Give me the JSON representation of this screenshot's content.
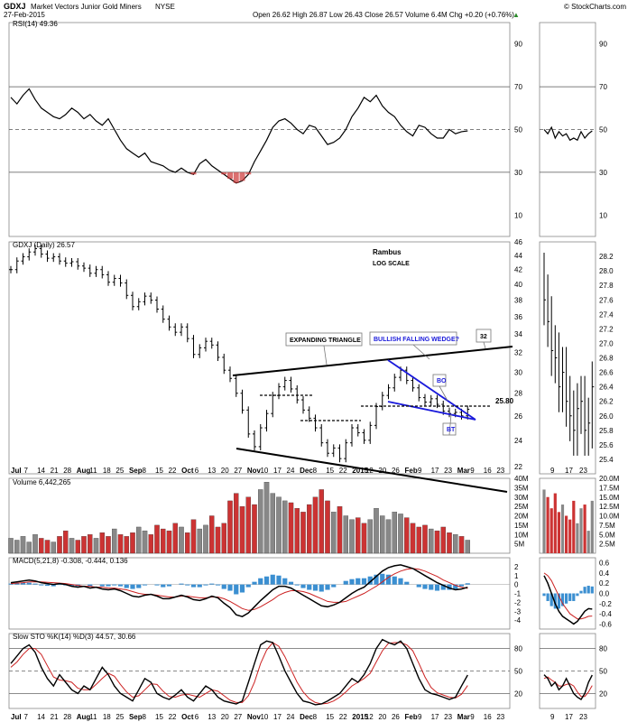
{
  "header": {
    "symbol": "GDXJ",
    "name": "Market Vectors Junior Gold Miners",
    "exchange": "NYSE",
    "date": "27-Feb-2015",
    "quote": "Open 26.62  High 26.87  Low 26.43  Close 26.57  Volume 6.4M  Chg +0.20 (+0.76%)",
    "quote_arrow": "▲",
    "credit": "© StockCharts.com"
  },
  "colors": {
    "up": "#000000",
    "down": "#cc3333",
    "volume_up": "#888888",
    "volume_down": "#cc3333",
    "macd_hist": "#3b8fd1",
    "signal": "#cc2222",
    "annotation_blue": "#1a1adb",
    "rsi_low_fill": "#cc3333"
  },
  "x_axis": {
    "main_labels": [
      "Jul",
      "7",
      "14",
      "21",
      "28",
      "Aug",
      "11",
      "18",
      "25",
      "Sep",
      "8",
      "15",
      "22",
      "Oct",
      "6",
      "13",
      "20",
      "27",
      "Nov",
      "10",
      "17",
      "24",
      "Dec",
      "8",
      "15",
      "22",
      "2015",
      "12",
      "20",
      "26",
      "Feb",
      "9",
      "17",
      "23",
      "Mar",
      "9",
      "16",
      "23"
    ],
    "side_labels": [
      "9",
      "17",
      "23"
    ]
  },
  "annotations": {
    "expanding_triangle": "EXPANDING TRIANGLE",
    "wedge": "BULLISH FALLING WEDGE?",
    "target": "32",
    "bo": "BO",
    "bt": "BT",
    "level": "25.80",
    "rambus": "Rambus",
    "log_scale": "LOG SCALE"
  },
  "chart_data": [
    {
      "type": "line",
      "title": "RSI(14) 49.36",
      "ylim": [
        0,
        100
      ],
      "y_ticks": [
        10,
        30,
        50,
        70,
        90
      ],
      "reference_lines": [
        30,
        50,
        70
      ],
      "y": [
        65,
        62,
        66,
        69,
        64,
        60,
        58,
        56,
        55,
        57,
        60,
        58,
        55,
        57,
        54,
        52,
        55,
        50,
        45,
        41,
        39,
        37,
        39,
        35,
        34,
        33,
        31,
        30,
        32,
        30,
        29,
        34,
        36,
        33,
        31,
        29,
        27,
        25,
        26,
        29,
        35,
        40,
        45,
        51,
        54,
        55,
        53,
        50,
        48,
        52,
        51,
        47,
        43,
        44,
        46,
        50,
        56,
        60,
        65,
        63,
        66,
        61,
        58,
        56,
        52,
        49,
        47,
        52,
        51,
        48,
        46,
        46,
        50,
        48,
        49,
        49.36
      ],
      "side_y": [
        50,
        48,
        51,
        46,
        49,
        47,
        48,
        45,
        46,
        45,
        49,
        46,
        48,
        49.36
      ]
    },
    {
      "type": "candlestick",
      "title": "GDXJ (Daily) 26.57",
      "scale": "log",
      "ylim": [
        21.5,
        46
      ],
      "y_ticks": [
        22,
        24,
        26,
        28,
        30,
        32,
        34,
        36,
        38,
        40,
        42,
        44,
        46
      ],
      "close": [
        42.0,
        43.2,
        43.8,
        44.5,
        45.0,
        44.2,
        43.6,
        43.8,
        43.2,
        42.9,
        43.1,
        42.5,
        42.2,
        41.5,
        42.0,
        41.3,
        40.3,
        40.8,
        40.2,
        38.6,
        37.2,
        37.8,
        38.5,
        38.0,
        36.9,
        35.7,
        34.8,
        34.2,
        34.8,
        33.5,
        31.8,
        32.5,
        33.2,
        32.8,
        31.5,
        30.2,
        29.4,
        28.0,
        26.5,
        24.5,
        23.5,
        25.0,
        26.2,
        27.8,
        28.6,
        29.2,
        28.4,
        27.4,
        26.5,
        25.8,
        25.0,
        23.8,
        23.0,
        23.4,
        22.6,
        23.8,
        25.0,
        24.6,
        24.0,
        25.2,
        26.8,
        27.8,
        28.5,
        29.5,
        30.2,
        29.2,
        28.5,
        27.6,
        27.2,
        27.5,
        27.0,
        26.4,
        26.2,
        26.3,
        26.0,
        26.57
      ],
      "side_close": [
        27.6,
        27.3,
        26.9,
        26.8,
        26.4,
        26.6,
        26.2,
        26.0,
        25.8,
        26.1,
        26.2,
        25.8,
        25.9,
        26.4
      ]
    },
    {
      "type": "bar",
      "title": "Volume 6,442,265",
      "unit": "M",
      "ylim": [
        0,
        40
      ],
      "y_ticks": [
        5,
        10,
        15,
        20,
        25,
        30,
        35,
        40
      ],
      "values": [
        8,
        7,
        9,
        6,
        10,
        8,
        7,
        6,
        9,
        12,
        8,
        7,
        9,
        10,
        8,
        11,
        9,
        13,
        10,
        9,
        11,
        14,
        12,
        10,
        15,
        13,
        12,
        16,
        14,
        11,
        18,
        13,
        15,
        20,
        14,
        16,
        28,
        32,
        25,
        30,
        26,
        34,
        38,
        32,
        30,
        28,
        27,
        24,
        22,
        26,
        30,
        34,
        28,
        22,
        25,
        20,
        18,
        19,
        16,
        18,
        24,
        20,
        18,
        22,
        21,
        19,
        16,
        14,
        15,
        13,
        12,
        14,
        11,
        10,
        9,
        7
      ],
      "side_ylim": [
        0,
        20
      ],
      "side_y_ticks": [
        2.5,
        5,
        7.5,
        10,
        12.5,
        15,
        17.5,
        20
      ],
      "side_values": [
        17,
        15,
        12,
        16,
        11,
        13,
        10,
        9,
        14,
        8,
        12,
        13,
        6,
        14
      ]
    },
    {
      "type": "line",
      "title": "MACD(5,21,8) -0.308, -0.444, 0.136",
      "ylim": [
        -5,
        3
      ],
      "y_ticks": [
        -4,
        -3,
        -2,
        -1,
        0,
        1,
        2
      ],
      "macd": [
        0.2,
        0.3,
        0.4,
        0.5,
        0.4,
        0.2,
        0.1,
        0.0,
        0.1,
        0.0,
        -0.2,
        -0.3,
        -0.2,
        -0.4,
        -0.3,
        -0.5,
        -0.6,
        -0.5,
        -0.7,
        -1.0,
        -1.3,
        -1.4,
        -1.2,
        -1.1,
        -1.3,
        -1.6,
        -1.6,
        -1.4,
        -1.2,
        -1.4,
        -1.7,
        -1.8,
        -1.6,
        -1.3,
        -1.5,
        -2.1,
        -2.6,
        -3.4,
        -3.6,
        -3.2,
        -2.5,
        -1.8,
        -1.2,
        -0.6,
        -0.2,
        -0.2,
        -0.4,
        -0.8,
        -1.2,
        -1.6,
        -2.0,
        -2.4,
        -2.5,
        -2.3,
        -2.0,
        -1.5,
        -1.0,
        -0.6,
        -0.3,
        0.3,
        0.9,
        1.5,
        1.9,
        2.1,
        2.2,
        2.0,
        1.8,
        1.4,
        1.0,
        0.6,
        0.2,
        -0.1,
        -0.4,
        -0.6,
        -0.5,
        -0.308
      ],
      "signal": [
        0.1,
        0.15,
        0.2,
        0.3,
        0.3,
        0.3,
        0.25,
        0.2,
        0.15,
        0.1,
        0.0,
        -0.1,
        -0.2,
        -0.2,
        -0.3,
        -0.3,
        -0.4,
        -0.4,
        -0.5,
        -0.6,
        -0.8,
        -1.0,
        -1.1,
        -1.1,
        -1.2,
        -1.3,
        -1.4,
        -1.4,
        -1.3,
        -1.3,
        -1.4,
        -1.5,
        -1.5,
        -1.4,
        -1.4,
        -1.6,
        -1.9,
        -2.3,
        -2.7,
        -2.9,
        -2.8,
        -2.5,
        -2.1,
        -1.7,
        -1.2,
        -0.9,
        -0.7,
        -0.7,
        -0.8,
        -1.0,
        -1.3,
        -1.6,
        -1.9,
        -2.0,
        -2.0,
        -1.9,
        -1.6,
        -1.3,
        -1.0,
        -0.6,
        -0.2,
        0.3,
        0.8,
        1.2,
        1.5,
        1.7,
        1.8,
        1.7,
        1.5,
        1.2,
        0.9,
        0.5,
        0.2,
        -0.1,
        -0.3,
        -0.444
      ],
      "side_ylim": [
        -0.7,
        0.7
      ],
      "side_y_ticks": [
        -0.6,
        -0.4,
        -0.2,
        0.0,
        0.2,
        0.4,
        0.6
      ],
      "side_macd": [
        0.35,
        0.2,
        0.0,
        -0.2,
        -0.35,
        -0.45,
        -0.5,
        -0.55,
        -0.6,
        -0.55,
        -0.45,
        -0.35,
        -0.3,
        -0.308
      ],
      "side_signal": [
        0.4,
        0.35,
        0.25,
        0.1,
        -0.05,
        -0.2,
        -0.3,
        -0.4,
        -0.45,
        -0.5,
        -0.5,
        -0.48,
        -0.45,
        -0.444
      ]
    },
    {
      "type": "line",
      "title": "Slow STO %K(14) %D(3) 44.57, 30.66",
      "ylim": [
        0,
        100
      ],
      "y_ticks": [
        20,
        50,
        80
      ],
      "reference_lines": [
        20,
        50,
        80
      ],
      "k": [
        60,
        70,
        80,
        85,
        75,
        55,
        40,
        30,
        45,
        35,
        25,
        20,
        30,
        25,
        40,
        55,
        45,
        30,
        20,
        15,
        10,
        25,
        40,
        35,
        20,
        15,
        12,
        18,
        25,
        15,
        10,
        20,
        30,
        25,
        15,
        10,
        8,
        6,
        10,
        35,
        60,
        85,
        90,
        88,
        70,
        50,
        35,
        20,
        10,
        8,
        5,
        6,
        10,
        15,
        20,
        30,
        40,
        35,
        45,
        60,
        80,
        92,
        88,
        85,
        90,
        80,
        60,
        40,
        25,
        20,
        18,
        15,
        12,
        15,
        30,
        44.57
      ],
      "d": [
        55,
        62,
        72,
        80,
        80,
        72,
        57,
        42,
        38,
        37,
        35,
        27,
        25,
        25,
        32,
        40,
        47,
        43,
        32,
        22,
        15,
        17,
        25,
        33,
        32,
        23,
        16,
        15,
        18,
        19,
        17,
        15,
        20,
        25,
        23,
        17,
        11,
        8,
        8,
        17,
        35,
        60,
        78,
        88,
        83,
        69,
        52,
        35,
        22,
        13,
        8,
        6,
        7,
        10,
        15,
        22,
        30,
        35,
        40,
        47,
        62,
        77,
        87,
        88,
        88,
        85,
        77,
        60,
        42,
        28,
        21,
        18,
        15,
        14,
        19,
        30.66
      ],
      "side_ylim": [
        0,
        100
      ],
      "side_y_ticks": [
        20,
        50,
        80
      ],
      "side_k": [
        45,
        40,
        30,
        35,
        25,
        30,
        40,
        30,
        20,
        15,
        12,
        20,
        35,
        44.57
      ],
      "side_d": [
        40,
        42,
        38,
        35,
        30,
        30,
        32,
        33,
        30,
        22,
        16,
        16,
        22,
        30.66
      ]
    }
  ]
}
